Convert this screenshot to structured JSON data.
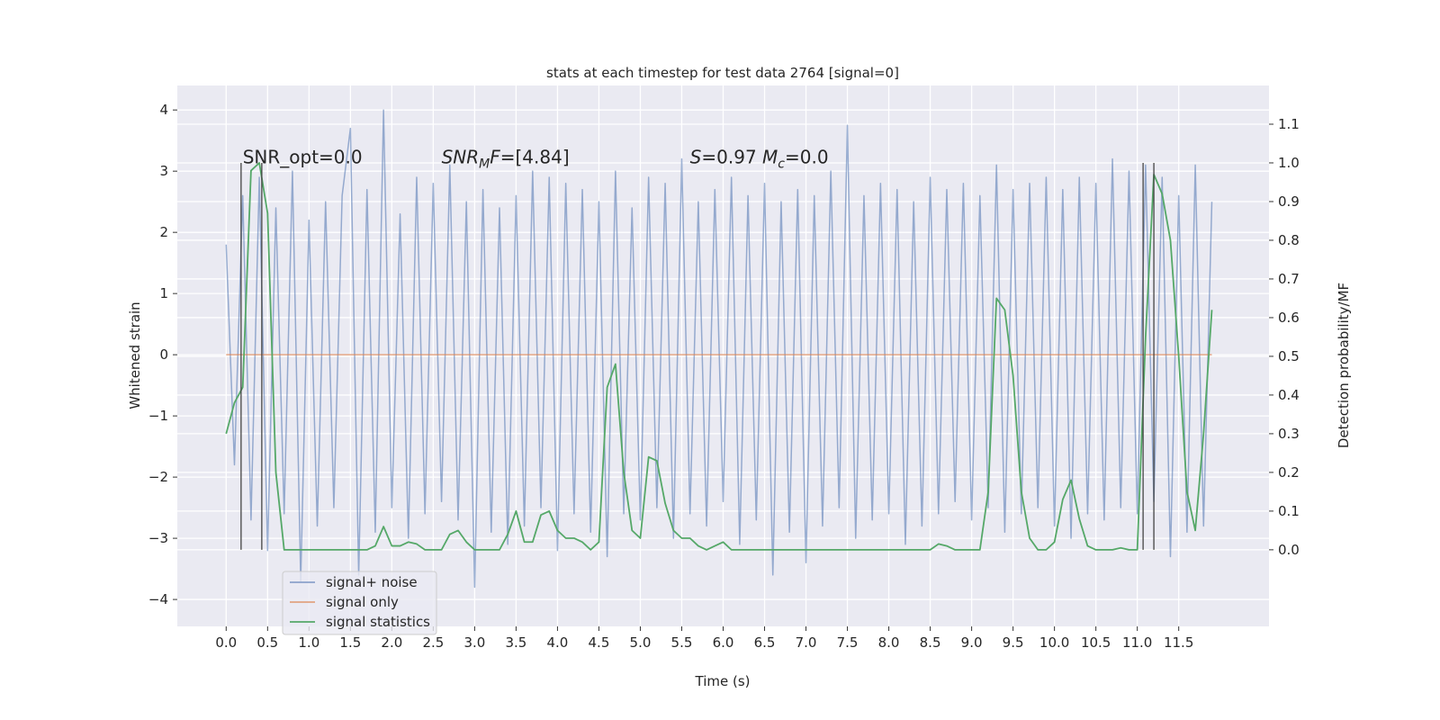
{
  "chart_data": {
    "type": "line",
    "title": "stats at each timestep for test data 2764 [signal=0]",
    "x_label": "Time (s)",
    "y_label": "Whitened strain",
    "y2_label": "Detection probability/MF",
    "x": [
      0.0,
      0.1,
      0.2,
      0.3,
      0.4,
      0.5,
      0.6,
      0.7,
      0.8,
      0.9,
      1.0,
      1.1,
      1.2,
      1.3,
      1.4,
      1.5,
      1.6,
      1.7,
      1.8,
      1.9,
      2.0,
      2.1,
      2.2,
      2.3,
      2.4,
      2.5,
      2.6,
      2.7,
      2.8,
      2.9,
      3.0,
      3.1,
      3.2,
      3.3,
      3.4,
      3.5,
      3.6,
      3.7,
      3.8,
      3.9,
      4.0,
      4.1,
      4.2,
      4.3,
      4.4,
      4.5,
      4.6,
      4.7,
      4.8,
      4.9,
      5.0,
      5.1,
      5.2,
      5.3,
      5.4,
      5.5,
      5.6,
      5.7,
      5.8,
      5.9,
      6.0,
      6.1,
      6.2,
      6.3,
      6.4,
      6.5,
      6.6,
      6.7,
      6.8,
      6.9,
      7.0,
      7.1,
      7.2,
      7.3,
      7.4,
      7.5,
      7.6,
      7.7,
      7.8,
      7.9,
      8.0,
      8.1,
      8.2,
      8.3,
      8.4,
      8.5,
      8.6,
      8.7,
      8.8,
      8.9,
      9.0,
      9.1,
      9.2,
      9.3,
      9.4,
      9.5,
      9.6,
      9.7,
      9.8,
      9.9,
      10.0,
      10.1,
      10.2,
      10.3,
      10.4,
      10.5,
      10.6,
      10.7,
      10.8,
      10.9,
      11.0,
      11.1,
      11.2,
      11.3,
      11.4,
      11.5,
      11.6,
      11.7,
      11.8,
      11.9
    ],
    "series": [
      {
        "name": "signal+ noise",
        "color": "#4c72b0",
        "values": [
          1.8,
          -1.8,
          2.6,
          -2.7,
          2.9,
          -3.2,
          2.4,
          -2.6,
          3.0,
          -3.7,
          2.2,
          -2.8,
          2.5,
          -2.5,
          2.6,
          3.7,
          -3.6,
          2.7,
          -2.9,
          4.0,
          -2.5,
          2.3,
          -3.0,
          2.9,
          -2.6,
          2.8,
          -2.4,
          3.1,
          -2.7,
          2.5,
          -3.8,
          2.7,
          -2.9,
          2.4,
          -3.1,
          2.6,
          -2.8,
          3.0,
          -2.5,
          2.9,
          -3.2,
          2.8,
          -2.6,
          2.7,
          -2.9,
          2.5,
          -3.3,
          3.0,
          -2.6,
          2.4,
          -2.7,
          2.9,
          -2.5,
          2.8,
          -3.0,
          3.2,
          -2.6,
          2.5,
          -2.8,
          2.7,
          -2.4,
          2.9,
          -3.1,
          2.6,
          -2.7,
          2.8,
          -3.6,
          2.5,
          -2.9,
          2.7,
          -3.4,
          2.6,
          -2.8,
          3.0,
          -2.5,
          3.75,
          -3.0,
          2.6,
          -2.7,
          2.8,
          -2.6,
          2.7,
          -3.1,
          2.5,
          -2.8,
          2.9,
          -2.6,
          2.7,
          -2.4,
          2.8,
          -2.7,
          2.6,
          -2.5,
          3.1,
          -2.9,
          2.7,
          -2.6,
          2.8,
          -2.5,
          2.9,
          -2.8,
          2.7,
          -3.0,
          2.9,
          -2.6,
          2.8,
          -2.7,
          3.2,
          -2.5,
          3.0,
          -2.6,
          3.1,
          -2.4,
          2.9,
          -3.3,
          2.6,
          -2.9,
          3.1,
          -2.8,
          2.5
        ]
      },
      {
        "name": "signal only",
        "color": "#dd8452",
        "values": [
          0,
          0,
          0,
          0,
          0,
          0,
          0,
          0,
          0,
          0,
          0,
          0,
          0,
          0,
          0,
          0,
          0,
          0,
          0,
          0,
          0,
          0,
          0,
          0,
          0,
          0,
          0,
          0,
          0,
          0,
          0,
          0,
          0,
          0,
          0,
          0,
          0,
          0,
          0,
          0,
          0,
          0,
          0,
          0,
          0,
          0,
          0,
          0,
          0,
          0,
          0,
          0,
          0,
          0,
          0,
          0,
          0,
          0,
          0,
          0,
          0,
          0,
          0,
          0,
          0,
          0,
          0,
          0,
          0,
          0,
          0,
          0,
          0,
          0,
          0,
          0,
          0,
          0,
          0,
          0,
          0,
          0,
          0,
          0,
          0,
          0,
          0,
          0,
          0,
          0,
          0,
          0,
          0,
          0,
          0,
          0,
          0,
          0,
          0,
          0,
          0,
          0,
          0,
          0,
          0,
          0,
          0,
          0,
          0,
          0,
          0,
          0,
          0,
          0,
          0,
          0,
          0,
          0,
          0,
          0
        ]
      },
      {
        "name": "signal statistics",
        "color": "#55a868",
        "axis": "y2",
        "values": [
          0.3,
          0.38,
          0.42,
          0.98,
          1.0,
          0.87,
          0.2,
          0.0,
          0.0,
          0.0,
          0.0,
          0.0,
          0.0,
          0.0,
          0.0,
          0.0,
          0.0,
          0.0,
          0.01,
          0.06,
          0.01,
          0.01,
          0.02,
          0.015,
          0.0,
          0.0,
          0.0,
          0.04,
          0.05,
          0.02,
          0.0,
          0.0,
          0.0,
          0.0,
          0.04,
          0.1,
          0.02,
          0.02,
          0.09,
          0.1,
          0.05,
          0.03,
          0.03,
          0.02,
          0.0,
          0.02,
          0.42,
          0.48,
          0.2,
          0.05,
          0.03,
          0.24,
          0.23,
          0.12,
          0.05,
          0.03,
          0.03,
          0.01,
          0.0,
          0.01,
          0.02,
          0.0,
          0.0,
          0.0,
          0.0,
          0.0,
          0.0,
          0.0,
          0.0,
          0.0,
          0.0,
          0.0,
          0.0,
          0.0,
          0.0,
          0.0,
          0.0,
          0.0,
          0.0,
          0.0,
          0.0,
          0.0,
          0.0,
          0.0,
          0.0,
          0.0,
          0.015,
          0.01,
          0.0,
          0.0,
          0.0,
          0.0,
          0.15,
          0.65,
          0.62,
          0.45,
          0.15,
          0.03,
          0.0,
          0.0,
          0.02,
          0.13,
          0.18,
          0.08,
          0.01,
          0.0,
          0.0,
          0.0,
          0.005,
          0.0,
          0.0,
          0.55,
          0.97,
          0.92,
          0.8,
          0.5,
          0.15,
          0.05,
          0.3,
          0.62
        ]
      }
    ],
    "vlines": [
      0.18,
      0.43,
      11.07,
      11.2
    ],
    "vline_range": [
      0,
      1.0
    ],
    "annotations": [
      {
        "x": 0.2,
        "y": 3.13,
        "parts": [
          {
            "text": "SNR_opt=0.0"
          }
        ]
      },
      {
        "x": 2.6,
        "y": 3.13,
        "parts": [
          {
            "text": "SNR",
            "italic": true
          },
          {
            "text": "M",
            "italic": true,
            "sub": true
          },
          {
            "text": "F",
            "italic": true
          },
          {
            "text": "=[4.84]"
          }
        ]
      },
      {
        "x": 5.6,
        "y": 3.13,
        "parts": [
          {
            "text": "S",
            "italic": true
          },
          {
            "text": "=0.97   "
          },
          {
            "text": "M",
            "italic": true
          },
          {
            "text": "c",
            "italic": true,
            "sub": true
          },
          {
            "text": "=0.0"
          }
        ]
      }
    ],
    "xlim": [
      -0.59,
      12.59
    ],
    "ylim": [
      -4.44,
      4.4
    ],
    "y2lim": [
      -0.198,
      1.2
    ],
    "xticks": [
      {
        "value": 0,
        "label": "0.0"
      },
      {
        "value": 0.5,
        "label": "0.5"
      },
      {
        "value": 1,
        "label": "1.0"
      },
      {
        "value": 1.5,
        "label": "1.5"
      },
      {
        "value": 2,
        "label": "2.0"
      },
      {
        "value": 2.5,
        "label": "2.5"
      },
      {
        "value": 3,
        "label": "3.0"
      },
      {
        "value": 3.5,
        "label": "3.5"
      },
      {
        "value": 4,
        "label": "4.0"
      },
      {
        "value": 4.5,
        "label": "4.5"
      },
      {
        "value": 5,
        "label": "5.0"
      },
      {
        "value": 5.5,
        "label": "5.5"
      },
      {
        "value": 6,
        "label": "6.0"
      },
      {
        "value": 6.5,
        "label": "6.5"
      },
      {
        "value": 7,
        "label": "7.0"
      },
      {
        "value": 7.5,
        "label": "7.5"
      },
      {
        "value": 8,
        "label": "8.0"
      },
      {
        "value": 8.5,
        "label": "8.5"
      },
      {
        "value": 9,
        "label": "9.0"
      },
      {
        "value": 9.5,
        "label": "9.5"
      },
      {
        "value": 10,
        "label": "10.0"
      },
      {
        "value": 10.5,
        "label": "10.5"
      },
      {
        "value": 11,
        "label": "11.0"
      },
      {
        "value": 11.5,
        "label": "11.5"
      }
    ],
    "yticks": [
      {
        "value": -4,
        "label": "−4"
      },
      {
        "value": -3,
        "label": "−3"
      },
      {
        "value": -2,
        "label": "−2"
      },
      {
        "value": -1,
        "label": "−1"
      },
      0,
      1,
      2,
      3,
      4
    ],
    "y2ticks": [
      {
        "value": 0,
        "label": "0.0"
      },
      {
        "value": 0.1,
        "label": "0.1"
      },
      {
        "value": 0.2,
        "label": "0.2"
      },
      {
        "value": 0.3,
        "label": "0.3"
      },
      {
        "value": 0.4,
        "label": "0.4"
      },
      {
        "value": 0.5,
        "label": "0.5"
      },
      {
        "value": 0.6,
        "label": "0.6"
      },
      {
        "value": 0.7,
        "label": "0.7"
      },
      {
        "value": 0.8,
        "label": "0.8"
      },
      {
        "value": 0.9,
        "label": "0.9"
      },
      {
        "value": 1.0,
        "label": "1.0"
      },
      {
        "value": 1.1,
        "label": "1.1"
      }
    ],
    "grid": true,
    "legend": "lower left"
  }
}
